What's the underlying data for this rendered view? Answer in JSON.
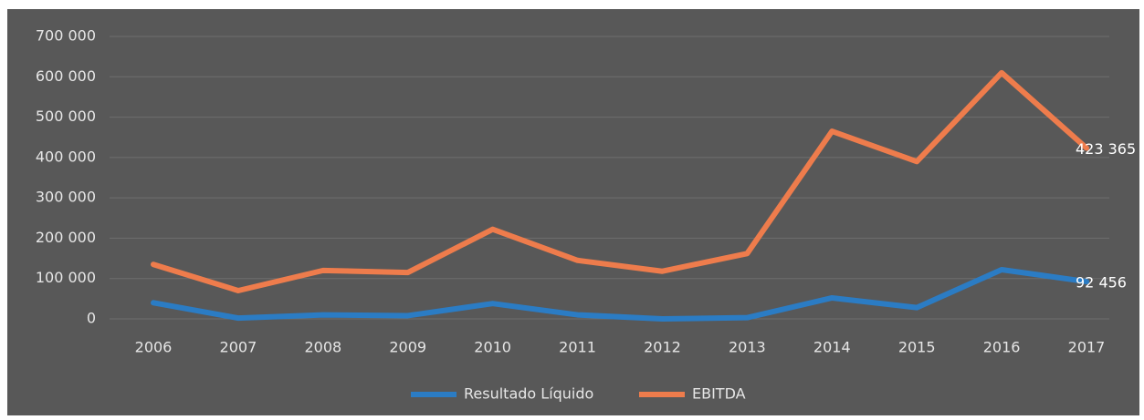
{
  "chart_data": {
    "type": "line",
    "categories": [
      "2006",
      "2007",
      "2008",
      "2009",
      "2010",
      "2011",
      "2012",
      "2013",
      "2014",
      "2015",
      "2016",
      "2017"
    ],
    "series": [
      {
        "name": "Resultado Líquido",
        "color": "#2b7cc4",
        "values": [
          40000,
          2000,
          10000,
          8000,
          38000,
          10000,
          0,
          3000,
          52000,
          28000,
          122000,
          92456
        ],
        "value_labels": [
          null,
          null,
          null,
          null,
          null,
          null,
          null,
          null,
          null,
          null,
          null,
          "92 456"
        ]
      },
      {
        "name": "EBITDA",
        "color": "#ee7c4c",
        "values": [
          135000,
          70000,
          120000,
          115000,
          222000,
          145000,
          118000,
          162000,
          465000,
          390000,
          610000,
          423365
        ],
        "value_labels": [
          null,
          null,
          null,
          null,
          null,
          null,
          null,
          null,
          null,
          null,
          null,
          "423 365"
        ]
      }
    ],
    "ylim": [
      0,
      700000
    ],
    "yticks": [
      0,
      {
        "value": 100000,
        "label": "100 000"
      },
      {
        "value": 200000,
        "label": "200 000"
      },
      {
        "value": 300000,
        "label": "300 000"
      },
      {
        "value": 400000,
        "label": "400 000"
      },
      {
        "value": 500000,
        "label": "500 000"
      },
      {
        "value": 600000,
        "label": "600 000"
      },
      {
        "value": 700000,
        "label": "700 000"
      }
    ],
    "grid": true,
    "legend": "bottom"
  }
}
